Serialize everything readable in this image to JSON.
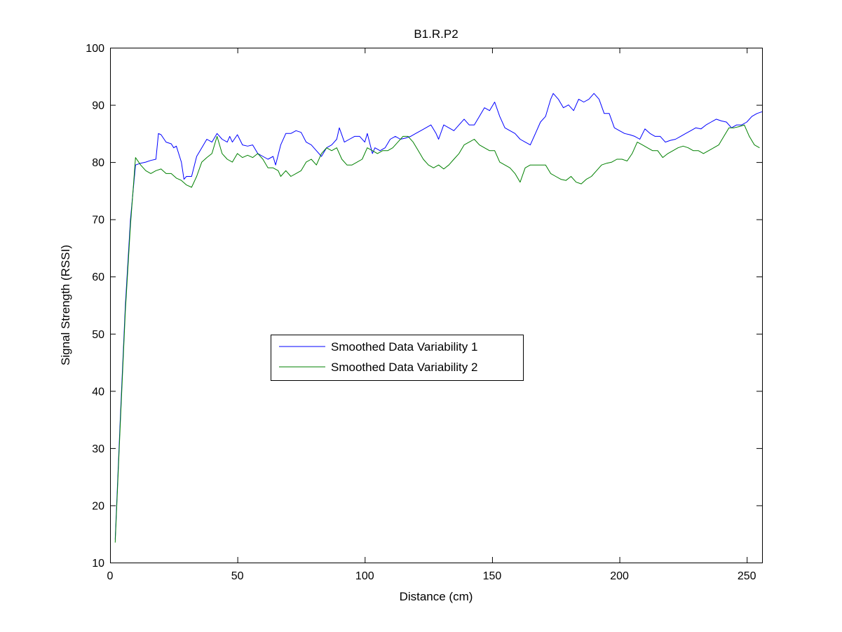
{
  "chart_data": {
    "type": "line",
    "title": "B1.R.P2",
    "xlabel": "Distance (cm)",
    "ylabel": "Signal Strength (RSSI)",
    "xlim": [
      0,
      256
    ],
    "ylim": [
      10,
      100
    ],
    "xticks": [
      0,
      50,
      100,
      150,
      200,
      250
    ],
    "yticks": [
      10,
      20,
      30,
      40,
      50,
      60,
      70,
      80,
      90,
      100
    ],
    "grid": false,
    "legend_position": "center-left",
    "series": [
      {
        "name": "Smoothed Data Variability 1",
        "color": "#0000ff",
        "points": [
          [
            2,
            14
          ],
          [
            4,
            35
          ],
          [
            6,
            55
          ],
          [
            8,
            70
          ],
          [
            10,
            79.5
          ],
          [
            12,
            79.8
          ],
          [
            14,
            80
          ],
          [
            16,
            80.3
          ],
          [
            18,
            80.5
          ],
          [
            19,
            85
          ],
          [
            20,
            84.8
          ],
          [
            22,
            83.5
          ],
          [
            24,
            83.2
          ],
          [
            25,
            82.5
          ],
          [
            26,
            82.8
          ],
          [
            28,
            80
          ],
          [
            29,
            77
          ],
          [
            30,
            77.5
          ],
          [
            32,
            77.5
          ],
          [
            34,
            81
          ],
          [
            36,
            82.5
          ],
          [
            38,
            84
          ],
          [
            40,
            83.5
          ],
          [
            42,
            85
          ],
          [
            44,
            84
          ],
          [
            46,
            83.5
          ],
          [
            47,
            84.5
          ],
          [
            48,
            83.5
          ],
          [
            50,
            84.8
          ],
          [
            52,
            83
          ],
          [
            54,
            82.8
          ],
          [
            56,
            83
          ],
          [
            58,
            81.5
          ],
          [
            60,
            81
          ],
          [
            62,
            80.5
          ],
          [
            64,
            81
          ],
          [
            65,
            79.5
          ],
          [
            67,
            83
          ],
          [
            69,
            85
          ],
          [
            71,
            85
          ],
          [
            73,
            85.5
          ],
          [
            75,
            85.2
          ],
          [
            77,
            83.5
          ],
          [
            79,
            83
          ],
          [
            81,
            82
          ],
          [
            83,
            81
          ],
          [
            85,
            82.5
          ],
          [
            87,
            83
          ],
          [
            89,
            84
          ],
          [
            90,
            86
          ],
          [
            92,
            83.5
          ],
          [
            94,
            84
          ],
          [
            96,
            84.5
          ],
          [
            98,
            84.5
          ],
          [
            100,
            83.5
          ],
          [
            101,
            85
          ],
          [
            103,
            81.5
          ],
          [
            104,
            82.5
          ],
          [
            106,
            82
          ],
          [
            108,
            82.5
          ],
          [
            110,
            84
          ],
          [
            112,
            84.5
          ],
          [
            114,
            84
          ],
          [
            116,
            84.2
          ],
          [
            118,
            84.5
          ],
          [
            120,
            85
          ],
          [
            122,
            85.5
          ],
          [
            124,
            86
          ],
          [
            126,
            86.5
          ],
          [
            128,
            85
          ],
          [
            129,
            84
          ],
          [
            131,
            86.5
          ],
          [
            133,
            86
          ],
          [
            135,
            85.5
          ],
          [
            137,
            86.5
          ],
          [
            139,
            87.5
          ],
          [
            141,
            86.5
          ],
          [
            143,
            86.5
          ],
          [
            145,
            88
          ],
          [
            147,
            89.5
          ],
          [
            149,
            89
          ],
          [
            151,
            90.5
          ],
          [
            153,
            88
          ],
          [
            155,
            86
          ],
          [
            157,
            85.5
          ],
          [
            159,
            85
          ],
          [
            161,
            84
          ],
          [
            163,
            83.5
          ],
          [
            165,
            83
          ],
          [
            167,
            85
          ],
          [
            169,
            87
          ],
          [
            171,
            88
          ],
          [
            173,
            91
          ],
          [
            174,
            92
          ],
          [
            176,
            91
          ],
          [
            178,
            89.5
          ],
          [
            180,
            90
          ],
          [
            182,
            89
          ],
          [
            184,
            91
          ],
          [
            186,
            90.5
          ],
          [
            188,
            91
          ],
          [
            190,
            92
          ],
          [
            192,
            91
          ],
          [
            194,
            88.5
          ],
          [
            196,
            88.5
          ],
          [
            198,
            86
          ],
          [
            200,
            85.5
          ],
          [
            202,
            85
          ],
          [
            204,
            84.8
          ],
          [
            206,
            84.5
          ],
          [
            208,
            84
          ],
          [
            210,
            85.8
          ],
          [
            212,
            85
          ],
          [
            214,
            84.5
          ],
          [
            216,
            84.5
          ],
          [
            218,
            83.5
          ],
          [
            220,
            83.8
          ],
          [
            222,
            84
          ],
          [
            224,
            84.5
          ],
          [
            226,
            85
          ],
          [
            228,
            85.5
          ],
          [
            230,
            86
          ],
          [
            232,
            85.8
          ],
          [
            234,
            86.5
          ],
          [
            236,
            87
          ],
          [
            238,
            87.5
          ],
          [
            240,
            87.2
          ],
          [
            242,
            87
          ],
          [
            244,
            86
          ],
          [
            246,
            86.5
          ],
          [
            248,
            86.5
          ],
          [
            250,
            87
          ],
          [
            252,
            88
          ],
          [
            254,
            88.5
          ],
          [
            256,
            88.8
          ]
        ]
      },
      {
        "name": "Smoothed Data Variability 2",
        "color": "#008000",
        "points": [
          [
            2,
            13.5
          ],
          [
            4,
            34
          ],
          [
            6,
            54
          ],
          [
            8,
            69
          ],
          [
            10,
            80.8
          ],
          [
            12,
            79.5
          ],
          [
            14,
            78.5
          ],
          [
            16,
            78
          ],
          [
            18,
            78.5
          ],
          [
            20,
            78.8
          ],
          [
            22,
            78
          ],
          [
            24,
            78
          ],
          [
            26,
            77.2
          ],
          [
            28,
            76.8
          ],
          [
            30,
            76
          ],
          [
            32,
            75.6
          ],
          [
            34,
            77.5
          ],
          [
            36,
            80
          ],
          [
            38,
            80.8
          ],
          [
            40,
            81.5
          ],
          [
            42,
            84.5
          ],
          [
            44,
            81.5
          ],
          [
            46,
            80.5
          ],
          [
            48,
            80
          ],
          [
            50,
            81.5
          ],
          [
            52,
            80.8
          ],
          [
            54,
            81.2
          ],
          [
            56,
            80.8
          ],
          [
            58,
            81.5
          ],
          [
            60,
            80.5
          ],
          [
            62,
            79
          ],
          [
            64,
            79
          ],
          [
            66,
            78.5
          ],
          [
            67,
            77.5
          ],
          [
            69,
            78.5
          ],
          [
            71,
            77.5
          ],
          [
            73,
            78
          ],
          [
            75,
            78.5
          ],
          [
            77,
            80
          ],
          [
            79,
            80.5
          ],
          [
            81,
            79.5
          ],
          [
            83,
            81.5
          ],
          [
            85,
            82.5
          ],
          [
            87,
            82
          ],
          [
            89,
            82.5
          ],
          [
            91,
            80.5
          ],
          [
            93,
            79.5
          ],
          [
            95,
            79.5
          ],
          [
            97,
            80
          ],
          [
            99,
            80.5
          ],
          [
            101,
            82.5
          ],
          [
            103,
            82
          ],
          [
            105,
            81.5
          ],
          [
            107,
            82
          ],
          [
            109,
            82
          ],
          [
            111,
            82.5
          ],
          [
            113,
            83.5
          ],
          [
            115,
            84.5
          ],
          [
            117,
            84.5
          ],
          [
            119,
            83.5
          ],
          [
            121,
            82
          ],
          [
            123,
            80.5
          ],
          [
            125,
            79.5
          ],
          [
            127,
            79
          ],
          [
            129,
            79.5
          ],
          [
            131,
            78.8
          ],
          [
            133,
            79.5
          ],
          [
            135,
            80.5
          ],
          [
            137,
            81.5
          ],
          [
            139,
            83
          ],
          [
            141,
            83.5
          ],
          [
            143,
            84
          ],
          [
            145,
            83
          ],
          [
            147,
            82.5
          ],
          [
            149,
            82
          ],
          [
            151,
            82
          ],
          [
            153,
            80
          ],
          [
            155,
            79.5
          ],
          [
            157,
            79
          ],
          [
            159,
            78
          ],
          [
            161,
            76.5
          ],
          [
            163,
            79
          ],
          [
            165,
            79.5
          ],
          [
            167,
            79.5
          ],
          [
            169,
            79.5
          ],
          [
            171,
            79.5
          ],
          [
            173,
            78
          ],
          [
            175,
            77.5
          ],
          [
            177,
            77
          ],
          [
            179,
            76.8
          ],
          [
            181,
            77.5
          ],
          [
            183,
            76.5
          ],
          [
            185,
            76.2
          ],
          [
            187,
            77
          ],
          [
            189,
            77.5
          ],
          [
            191,
            78.5
          ],
          [
            193,
            79.5
          ],
          [
            195,
            79.8
          ],
          [
            197,
            80
          ],
          [
            199,
            80.5
          ],
          [
            201,
            80.5
          ],
          [
            203,
            80.2
          ],
          [
            205,
            81.5
          ],
          [
            207,
            83.5
          ],
          [
            209,
            83
          ],
          [
            211,
            82.5
          ],
          [
            213,
            82
          ],
          [
            215,
            82
          ],
          [
            217,
            80.8
          ],
          [
            219,
            81.5
          ],
          [
            221,
            82
          ],
          [
            223,
            82.5
          ],
          [
            225,
            82.8
          ],
          [
            227,
            82.5
          ],
          [
            229,
            82
          ],
          [
            231,
            82
          ],
          [
            233,
            81.5
          ],
          [
            235,
            82
          ],
          [
            237,
            82.5
          ],
          [
            239,
            83
          ],
          [
            241,
            84.5
          ],
          [
            243,
            86
          ],
          [
            245,
            86
          ],
          [
            247,
            86.2
          ],
          [
            249,
            86.5
          ],
          [
            251,
            84.5
          ],
          [
            253,
            83
          ],
          [
            255,
            82.5
          ]
        ]
      }
    ]
  }
}
